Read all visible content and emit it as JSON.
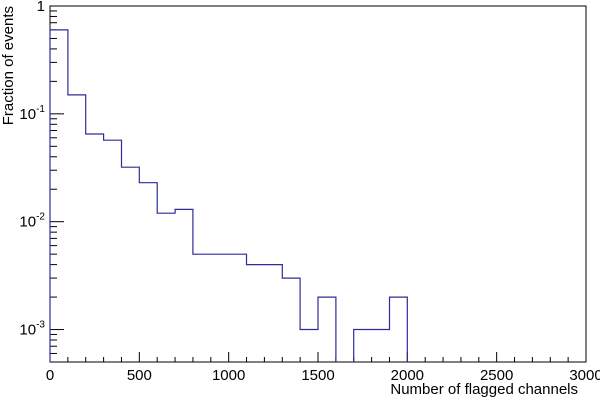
{
  "chart_data": {
    "type": "histogram",
    "title": "",
    "xlabel": "Number of flagged channels",
    "ylabel": "Fraction of events",
    "x_scale": "linear",
    "y_scale": "log",
    "xlim": [
      0,
      3000
    ],
    "ylim": [
      0.0005,
      1
    ],
    "x_ticks": [
      {
        "value": 0,
        "label": "0"
      },
      {
        "value": 500,
        "label": "500"
      },
      {
        "value": 1000,
        "label": "1000"
      },
      {
        "value": 1500,
        "label": "1500"
      },
      {
        "value": 2000,
        "label": "2000"
      },
      {
        "value": 2500,
        "label": "2500"
      },
      {
        "value": 3000,
        "label": "3000"
      }
    ],
    "y_ticks": [
      {
        "value": 0.001,
        "base": "10",
        "exp": "-3"
      },
      {
        "value": 0.01,
        "base": "10",
        "exp": "-2"
      },
      {
        "value": 0.1,
        "base": "10",
        "exp": "-1"
      },
      {
        "value": 1,
        "base": "1",
        "exp": ""
      }
    ],
    "grid": false,
    "legend": "none",
    "line_color": "#2c2c9a",
    "series": [
      {
        "bins": [
          {
            "x0": 0,
            "x1": 100,
            "y": 0.6
          },
          {
            "x0": 100,
            "x1": 200,
            "y": 0.15
          },
          {
            "x0": 200,
            "x1": 300,
            "y": 0.065
          },
          {
            "x0": 300,
            "x1": 400,
            "y": 0.057
          },
          {
            "x0": 400,
            "x1": 500,
            "y": 0.032
          },
          {
            "x0": 500,
            "x1": 600,
            "y": 0.023
          },
          {
            "x0": 600,
            "x1": 700,
            "y": 0.012
          },
          {
            "x0": 700,
            "x1": 800,
            "y": 0.013
          },
          {
            "x0": 800,
            "x1": 900,
            "y": 0.005
          },
          {
            "x0": 900,
            "x1": 1000,
            "y": 0.005
          },
          {
            "x0": 1000,
            "x1": 1100,
            "y": 0.005
          },
          {
            "x0": 1100,
            "x1": 1200,
            "y": 0.004
          },
          {
            "x0": 1200,
            "x1": 1300,
            "y": 0.004
          },
          {
            "x0": 1300,
            "x1": 1400,
            "y": 0.003
          },
          {
            "x0": 1400,
            "x1": 1500,
            "y": 0.001
          },
          {
            "x0": 1500,
            "x1": 1600,
            "y": 0.002
          },
          {
            "x0": 1600,
            "x1": 1700,
            "y": 0
          },
          {
            "x0": 1700,
            "x1": 1800,
            "y": 0.001
          },
          {
            "x0": 1800,
            "x1": 1900,
            "y": 0.001
          },
          {
            "x0": 1900,
            "x1": 2000,
            "y": 0.002
          }
        ]
      }
    ]
  }
}
